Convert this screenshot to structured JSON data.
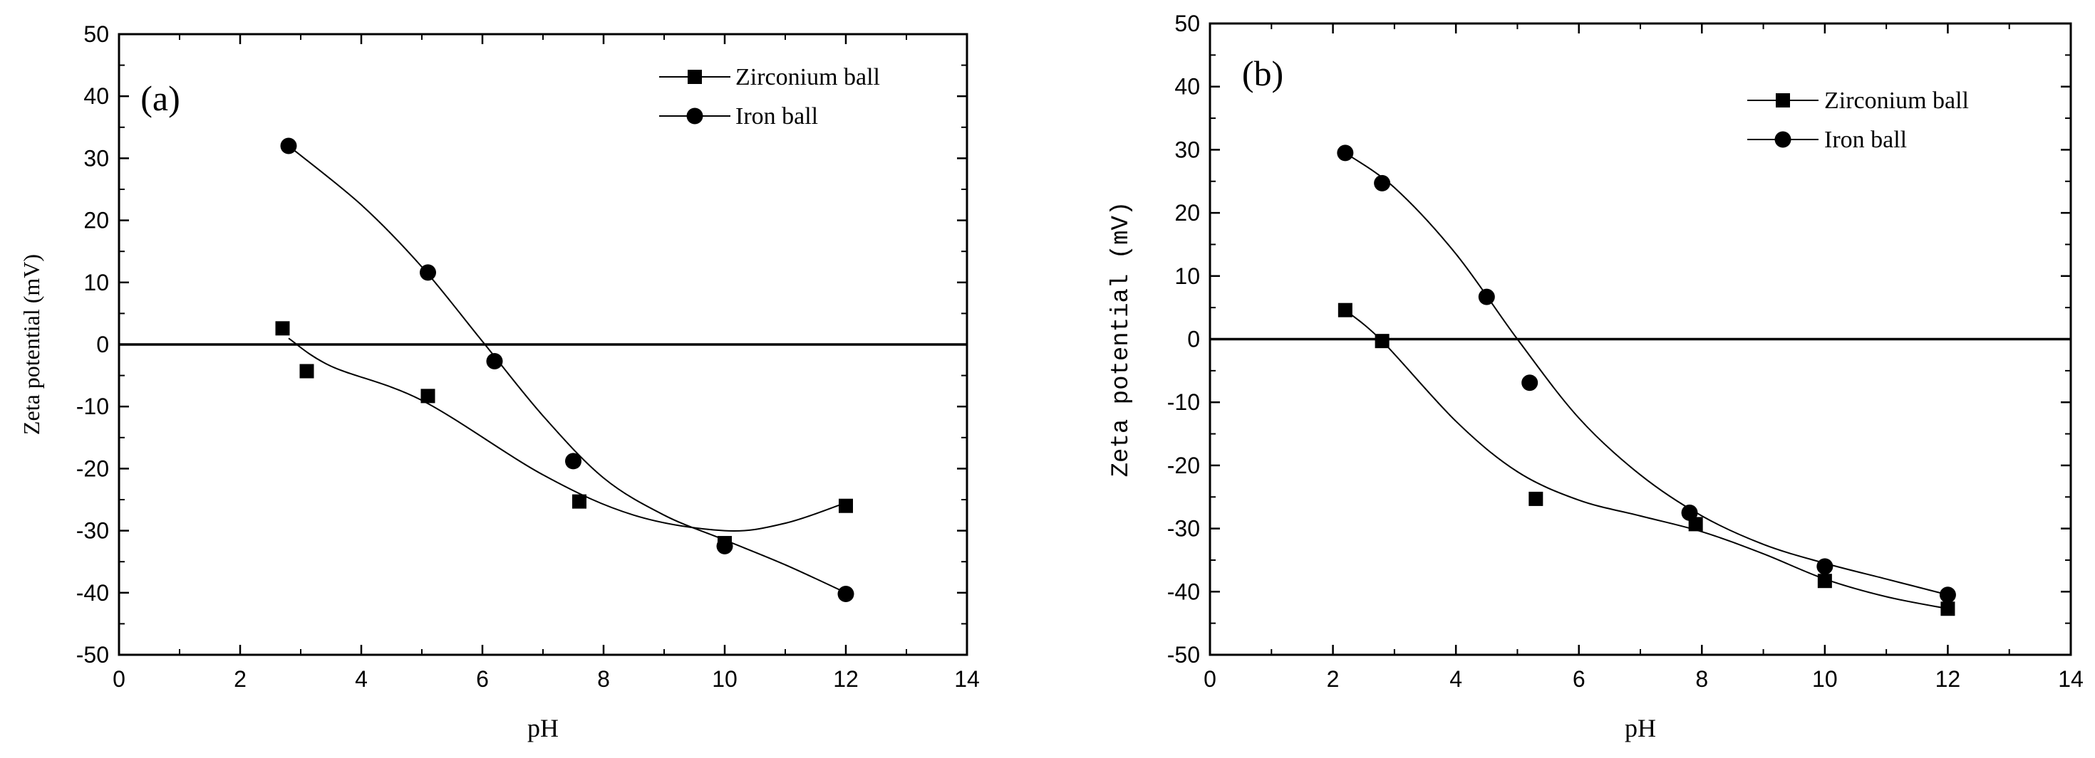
{
  "chart_data": [
    {
      "type": "line",
      "panel_label": "(a)",
      "xlabel": "pH",
      "ylabel": "Zeta potential (mV)",
      "xlim": [
        0,
        14
      ],
      "ylim": [
        -50,
        50
      ],
      "xticks": [
        0,
        2,
        4,
        6,
        8,
        10,
        12,
        14
      ],
      "yticks": [
        -50,
        -40,
        -30,
        -20,
        -10,
        0,
        10,
        20,
        30,
        40,
        50
      ],
      "zero_line": true,
      "legend_position": "top-right",
      "series": [
        {
          "name": "Zirconium ball",
          "marker": "square",
          "points": [
            [
              2.7,
              2.6
            ],
            [
              3.1,
              -4.3
            ],
            [
              5.1,
              -8.3
            ],
            [
              7.6,
              -25.3
            ],
            [
              10.0,
              -32.0
            ],
            [
              12.0,
              -26.0
            ]
          ],
          "curve": [
            [
              2.8,
              1.0
            ],
            [
              3.5,
              -3.5
            ],
            [
              5.0,
              -9.0
            ],
            [
              7.0,
              -21.0
            ],
            [
              8.5,
              -27.5
            ],
            [
              10.0,
              -30.0
            ],
            [
              11.0,
              -28.8
            ],
            [
              12.0,
              -25.5
            ]
          ]
        },
        {
          "name": "Iron ball",
          "marker": "circle",
          "points": [
            [
              2.8,
              32.0
            ],
            [
              5.1,
              11.6
            ],
            [
              6.2,
              -2.7
            ],
            [
              7.5,
              -18.8
            ],
            [
              10.0,
              -32.5
            ],
            [
              12.0,
              -40.2
            ]
          ],
          "curve": [
            [
              2.8,
              32.0
            ],
            [
              4.0,
              22.5
            ],
            [
              5.0,
              12.5
            ],
            [
              6.0,
              0.5
            ],
            [
              7.0,
              -11.5
            ],
            [
              8.0,
              -21.5
            ],
            [
              9.0,
              -27.5
            ],
            [
              10.0,
              -31.5
            ],
            [
              11.0,
              -35.5
            ],
            [
              12.0,
              -40.0
            ]
          ]
        }
      ]
    },
    {
      "type": "line",
      "panel_label": "(b)",
      "xlabel": "pH",
      "ylabel": "Zeta potential (mV)",
      "xlim": [
        0,
        14
      ],
      "ylim": [
        -50,
        50
      ],
      "xticks": [
        0,
        2,
        4,
        6,
        8,
        10,
        12,
        14
      ],
      "yticks": [
        -50,
        -40,
        -30,
        -20,
        -10,
        0,
        10,
        20,
        30,
        40,
        50
      ],
      "zero_line": true,
      "legend_position": "top-right",
      "series": [
        {
          "name": "Zirconium ball",
          "marker": "square",
          "points": [
            [
              2.2,
              4.6
            ],
            [
              2.8,
              -0.3
            ],
            [
              5.3,
              -25.3
            ],
            [
              7.9,
              -29.3
            ],
            [
              10.0,
              -38.3
            ],
            [
              12.0,
              -42.7
            ]
          ],
          "curve": [
            [
              2.2,
              4.6
            ],
            [
              2.8,
              -0.3
            ],
            [
              4.0,
              -13.0
            ],
            [
              5.0,
              -21.0
            ],
            [
              6.0,
              -25.5
            ],
            [
              7.0,
              -28.0
            ],
            [
              8.0,
              -30.5
            ],
            [
              9.0,
              -34.0
            ],
            [
              10.0,
              -38.0
            ],
            [
              11.0,
              -40.8
            ],
            [
              12.0,
              -42.7
            ]
          ]
        },
        {
          "name": "Iron ball",
          "marker": "circle",
          "points": [
            [
              2.2,
              29.5
            ],
            [
              2.8,
              24.7
            ],
            [
              4.5,
              6.7
            ],
            [
              5.2,
              -6.9
            ],
            [
              7.8,
              -27.5
            ],
            [
              10.0,
              -36.0
            ],
            [
              12.0,
              -40.5
            ]
          ],
          "curve": [
            [
              2.2,
              29.5
            ],
            [
              3.0,
              24.0
            ],
            [
              4.0,
              13.5
            ],
            [
              5.0,
              0.0
            ],
            [
              6.0,
              -12.5
            ],
            [
              7.0,
              -21.5
            ],
            [
              8.0,
              -28.0
            ],
            [
              9.0,
              -32.5
            ],
            [
              10.0,
              -35.5
            ],
            [
              11.0,
              -38.0
            ],
            [
              12.0,
              -40.5
            ]
          ]
        }
      ]
    }
  ]
}
